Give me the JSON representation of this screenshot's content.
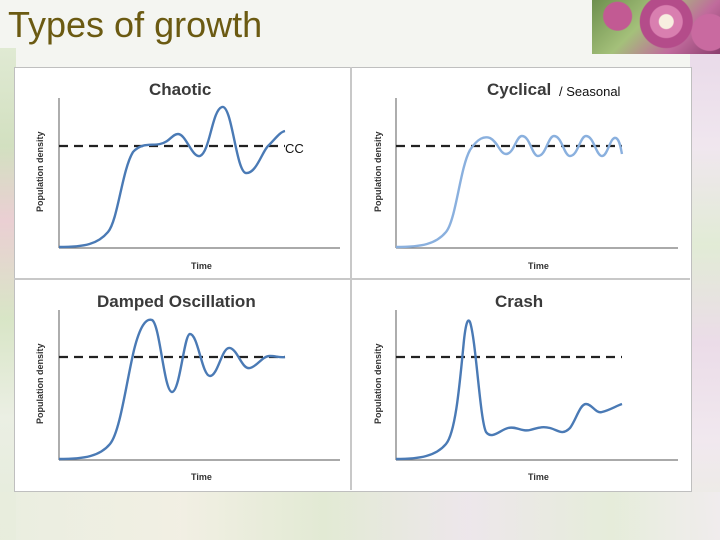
{
  "slide": {
    "title": "Types of growth",
    "cc_label": "CC",
    "seasonal_suffix": "/ Seasonal"
  },
  "panels": [
    {
      "title": "Chaotic",
      "ylabel": "Population density",
      "xlabel": "Time"
    },
    {
      "title": "Cyclical",
      "ylabel": "Population density",
      "xlabel": "Time"
    },
    {
      "title": "Damped Oscillation",
      "ylabel": "Population density",
      "xlabel": "Time"
    },
    {
      "title": "Crash",
      "ylabel": "Population density",
      "xlabel": "Time"
    }
  ],
  "colors": {
    "title": "#6b5a12",
    "curve": "#4a7ab5",
    "capacity_line": "#222222"
  }
}
